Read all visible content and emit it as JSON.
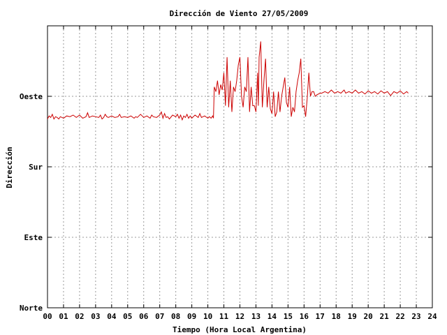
{
  "chart_data": {
    "type": "line",
    "title": "Dirección de Viento 27/05/2009",
    "xlabel": "Tiempo (Hora Local Argentina)",
    "ylabel": "Dirección",
    "x_tick_labels": [
      "00",
      "01",
      "02",
      "03",
      "04",
      "05",
      "06",
      "07",
      "08",
      "09",
      "10",
      "11",
      "12",
      "13",
      "14",
      "15",
      "16",
      "17",
      "18",
      "19",
      "20",
      "21",
      "22",
      "23",
      "24"
    ],
    "xlim": [
      0,
      24
    ],
    "y_tick_labels": [
      "Norte",
      "Este",
      "Sur",
      "Oeste"
    ],
    "y_tick_values": [
      0,
      90,
      180,
      270
    ],
    "ylim": [
      0,
      360
    ],
    "grid": true,
    "line_color": "#cc0000",
    "series": [
      {
        "points": [
          [
            0.0,
            241
          ],
          [
            0.1,
            245
          ],
          [
            0.2,
            243
          ],
          [
            0.3,
            247
          ],
          [
            0.4,
            241
          ],
          [
            0.5,
            244
          ],
          [
            0.6,
            243
          ],
          [
            0.7,
            241
          ],
          [
            0.8,
            244
          ],
          [
            0.9,
            243
          ],
          [
            1.0,
            242
          ],
          [
            1.2,
            245
          ],
          [
            1.4,
            244
          ],
          [
            1.6,
            246
          ],
          [
            1.8,
            243
          ],
          [
            2.0,
            246
          ],
          [
            2.2,
            242
          ],
          [
            2.4,
            244
          ],
          [
            2.5,
            249
          ],
          [
            2.6,
            243
          ],
          [
            2.8,
            245
          ],
          [
            3.0,
            244
          ],
          [
            3.2,
            243
          ],
          [
            3.3,
            246
          ],
          [
            3.4,
            241
          ],
          [
            3.5,
            243
          ],
          [
            3.6,
            247
          ],
          [
            3.7,
            244
          ],
          [
            3.8,
            243
          ],
          [
            4.0,
            245
          ],
          [
            4.2,
            243
          ],
          [
            4.4,
            244
          ],
          [
            4.5,
            247
          ],
          [
            4.6,
            243
          ],
          [
            4.8,
            244
          ],
          [
            5.0,
            243
          ],
          [
            5.2,
            245
          ],
          [
            5.4,
            242
          ],
          [
            5.5,
            244
          ],
          [
            5.6,
            243
          ],
          [
            5.8,
            247
          ],
          [
            6.0,
            243
          ],
          [
            6.2,
            245
          ],
          [
            6.4,
            242
          ],
          [
            6.5,
            246
          ],
          [
            6.6,
            244
          ],
          [
            6.8,
            243
          ],
          [
            7.0,
            246
          ],
          [
            7.1,
            250
          ],
          [
            7.2,
            242
          ],
          [
            7.3,
            248
          ],
          [
            7.4,
            243
          ],
          [
            7.5,
            244
          ],
          [
            7.6,
            241
          ],
          [
            7.8,
            246
          ],
          [
            8.0,
            244
          ],
          [
            8.1,
            247
          ],
          [
            8.2,
            242
          ],
          [
            8.3,
            246
          ],
          [
            8.4,
            240
          ],
          [
            8.5,
            245
          ],
          [
            8.6,
            243
          ],
          [
            8.7,
            247
          ],
          [
            8.8,
            242
          ],
          [
            8.9,
            245
          ],
          [
            9.0,
            242
          ],
          [
            9.2,
            246
          ],
          [
            9.4,
            243
          ],
          [
            9.5,
            248
          ],
          [
            9.6,
            243
          ],
          [
            9.8,
            245
          ],
          [
            10.0,
            242
          ],
          [
            10.1,
            244
          ],
          [
            10.2,
            242
          ],
          [
            10.3,
            245
          ],
          [
            10.35,
            242
          ],
          [
            10.4,
            282
          ],
          [
            10.5,
            276
          ],
          [
            10.6,
            290
          ],
          [
            10.7,
            272
          ],
          [
            10.8,
            285
          ],
          [
            10.9,
            278
          ],
          [
            11.0,
            300
          ],
          [
            11.1,
            258
          ],
          [
            11.2,
            320
          ],
          [
            11.3,
            256
          ],
          [
            11.4,
            290
          ],
          [
            11.5,
            250
          ],
          [
            11.6,
            282
          ],
          [
            11.7,
            276
          ],
          [
            11.8,
            290
          ],
          [
            11.9,
            310
          ],
          [
            12.0,
            320
          ],
          [
            12.1,
            270
          ],
          [
            12.2,
            256
          ],
          [
            12.3,
            282
          ],
          [
            12.4,
            276
          ],
          [
            12.5,
            320
          ],
          [
            12.6,
            250
          ],
          [
            12.7,
            282
          ],
          [
            12.8,
            258
          ],
          [
            12.9,
            258
          ],
          [
            13.0,
            250
          ],
          [
            13.1,
            300
          ],
          [
            13.15,
            258
          ],
          [
            13.2,
            320
          ],
          [
            13.3,
            340
          ],
          [
            13.4,
            256
          ],
          [
            13.5,
            290
          ],
          [
            13.6,
            318
          ],
          [
            13.7,
            256
          ],
          [
            13.8,
            282
          ],
          [
            13.9,
            254
          ],
          [
            14.0,
            248
          ],
          [
            14.1,
            276
          ],
          [
            14.2,
            244
          ],
          [
            14.3,
            250
          ],
          [
            14.4,
            276
          ],
          [
            14.5,
            250
          ],
          [
            14.6,
            270
          ],
          [
            14.7,
            282
          ],
          [
            14.8,
            294
          ],
          [
            14.9,
            262
          ],
          [
            15.0,
            256
          ],
          [
            15.1,
            282
          ],
          [
            15.2,
            244
          ],
          [
            15.3,
            256
          ],
          [
            15.4,
            250
          ],
          [
            15.5,
            276
          ],
          [
            15.6,
            290
          ],
          [
            15.7,
            300
          ],
          [
            15.8,
            318
          ],
          [
            15.9,
            256
          ],
          [
            16.0,
            258
          ],
          [
            16.1,
            244
          ],
          [
            16.2,
            268
          ],
          [
            16.3,
            300
          ],
          [
            16.4,
            270
          ],
          [
            16.5,
            276
          ],
          [
            16.6,
            276
          ],
          [
            16.7,
            270
          ],
          [
            16.8,
            272
          ],
          [
            17.0,
            274
          ],
          [
            17.1,
            274
          ],
          [
            17.3,
            276
          ],
          [
            17.5,
            274
          ],
          [
            17.7,
            278
          ],
          [
            17.9,
            274
          ],
          [
            18.1,
            276
          ],
          [
            18.3,
            274
          ],
          [
            18.5,
            278
          ],
          [
            18.6,
            274
          ],
          [
            18.8,
            276
          ],
          [
            19.0,
            274
          ],
          [
            19.2,
            278
          ],
          [
            19.4,
            274
          ],
          [
            19.6,
            276
          ],
          [
            19.8,
            273
          ],
          [
            20.0,
            277
          ],
          [
            20.2,
            274
          ],
          [
            20.4,
            276
          ],
          [
            20.6,
            273
          ],
          [
            20.8,
            277
          ],
          [
            21.0,
            274
          ],
          [
            21.2,
            276
          ],
          [
            21.4,
            271
          ],
          [
            21.6,
            276
          ],
          [
            21.8,
            274
          ],
          [
            22.0,
            277
          ],
          [
            22.2,
            273
          ],
          [
            22.4,
            276
          ],
          [
            22.5,
            274
          ]
        ]
      }
    ]
  }
}
